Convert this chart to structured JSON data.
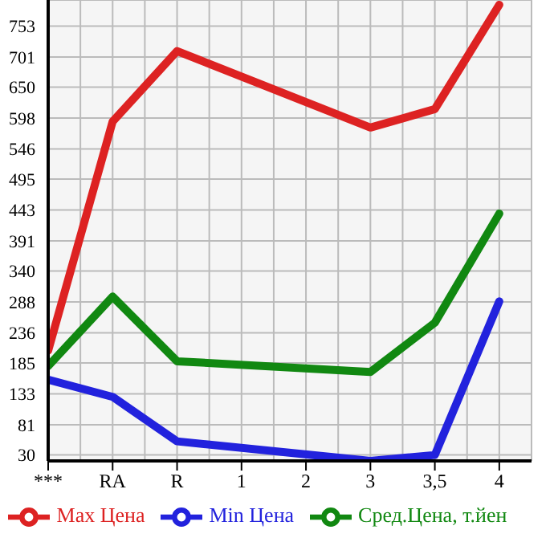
{
  "chart_data": {
    "type": "line",
    "categories": [
      "***",
      "RA",
      "R",
      "1",
      "2",
      "3",
      "3,5",
      "4"
    ],
    "series": [
      {
        "name": "Max Цена",
        "color": "#dd2222",
        "values": [
          206,
          592,
          711,
          null,
          null,
          582,
          613,
          789
        ]
      },
      {
        "name": "Min Цена",
        "color": "#2222dd",
        "values": [
          157,
          128,
          53,
          null,
          null,
          20,
          30,
          289
        ]
      },
      {
        "name": "Сред.Цена, т.йен",
        "color": "#118811",
        "values": [
          180,
          297,
          188,
          null,
          null,
          170,
          253,
          437
        ]
      }
    ],
    "ylim": [
      20,
      797
    ],
    "yticks": [
      30,
      81,
      133,
      185,
      236,
      288,
      340,
      391,
      443,
      495,
      546,
      598,
      650,
      701,
      753
    ],
    "grid": true,
    "legend": "bottom",
    "marker": "none",
    "line_style": "solid"
  }
}
